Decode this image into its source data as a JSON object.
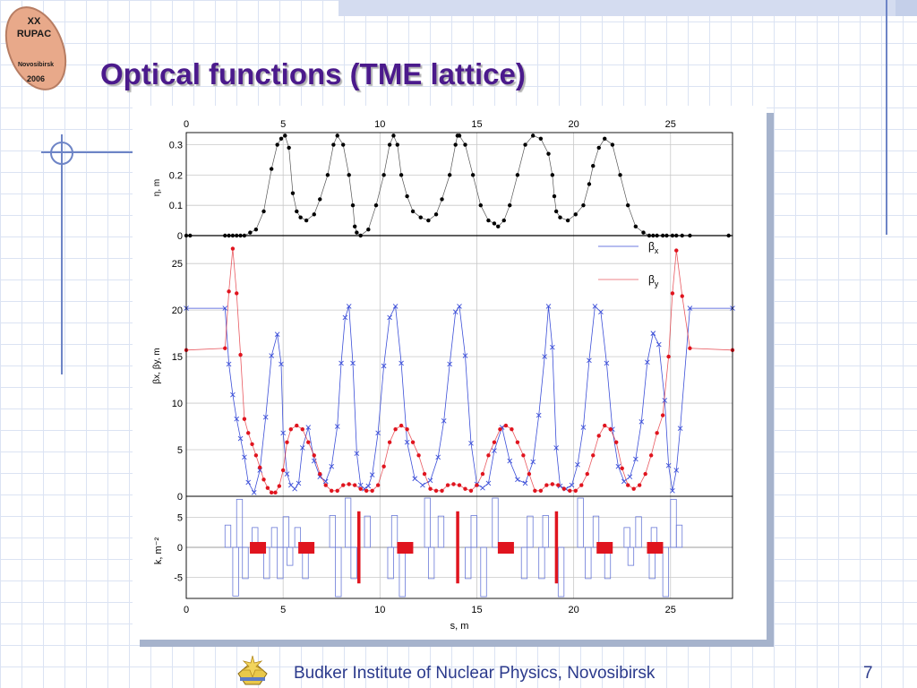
{
  "slide": {
    "title": "Optical functions (TME lattice)",
    "footer": "Budker Institute of Nuclear Physics, Novosibirsk",
    "page_number": "7",
    "logo": {
      "line1": "XX",
      "line2": "RUPAC",
      "line3": "Novosibirsk",
      "line4": "2006"
    }
  },
  "colors": {
    "title": "#4b1a8c",
    "footer": "#2b3a8c",
    "beta_x": "#3c4fd8",
    "beta_y": "#e0141e",
    "eta": "#000000",
    "magnet": "#e0141e",
    "gradient": "#6a7ad8",
    "logo": "#e8a98a"
  },
  "chart_data": [
    {
      "type": "line",
      "panel": "dispersion",
      "ylabel": "η, m",
      "ylim": [
        0,
        0.34
      ],
      "yticks": [
        "0",
        "0.1",
        "0.2",
        "0.3"
      ],
      "xlim": [
        0,
        28.2
      ],
      "xticks_top": [
        "0",
        "5",
        "10",
        "15",
        "20",
        "25"
      ],
      "x": [
        0,
        0.2,
        2,
        2.2,
        2.4,
        2.6,
        2.8,
        3,
        3.3,
        3.6,
        4.0,
        4.4,
        4.7,
        4.9,
        5.1,
        5.3,
        5.5,
        5.7,
        5.9,
        6.2,
        6.6,
        6.9,
        7.3,
        7.6,
        7.8,
        8.1,
        8.4,
        8.6,
        8.7,
        8.8,
        9.0,
        9.4,
        9.8,
        10.2,
        10.5,
        10.7,
        10.9,
        11.1,
        11.4,
        11.7,
        12.1,
        12.5,
        12.9,
        13.2,
        13.6,
        13.9,
        14.0,
        14.1,
        14.4,
        14.8,
        15.2,
        15.6,
        15.9,
        16.1,
        16.4,
        16.7,
        17.1,
        17.5,
        17.9,
        18.3,
        18.7,
        18.9,
        19.0,
        19.1,
        19.3,
        19.7,
        20.1,
        20.5,
        20.8,
        21.0,
        21.3,
        21.6,
        22.0,
        22.4,
        22.8,
        23.2,
        23.6,
        23.9,
        24.1,
        24.3,
        24.6,
        24.8,
        25.1,
        25.3,
        25.6,
        26,
        28
      ],
      "y": [
        0,
        0,
        0,
        0,
        0,
        0,
        0,
        0,
        0.01,
        0.02,
        0.08,
        0.22,
        0.3,
        0.32,
        0.33,
        0.29,
        0.14,
        0.08,
        0.06,
        0.05,
        0.07,
        0.12,
        0.2,
        0.3,
        0.33,
        0.3,
        0.2,
        0.1,
        0.03,
        0.01,
        0,
        0.02,
        0.1,
        0.2,
        0.3,
        0.33,
        0.3,
        0.2,
        0.13,
        0.08,
        0.06,
        0.05,
        0.07,
        0.12,
        0.2,
        0.3,
        0.33,
        0.33,
        0.3,
        0.2,
        0.1,
        0.05,
        0.04,
        0.03,
        0.05,
        0.1,
        0.2,
        0.3,
        0.33,
        0.32,
        0.27,
        0.2,
        0.13,
        0.08,
        0.06,
        0.05,
        0.07,
        0.1,
        0.17,
        0.23,
        0.29,
        0.32,
        0.3,
        0.2,
        0.1,
        0.03,
        0.01,
        0,
        0,
        0,
        0,
        0,
        0,
        0,
        0,
        0,
        0
      ]
    },
    {
      "type": "line",
      "panel": "beta",
      "ylabel": "βx, βy, m",
      "ylim": [
        0,
        28
      ],
      "yticks": [
        "0",
        "5",
        "10",
        "15",
        "20",
        "25"
      ],
      "xlim": [
        0,
        28.2
      ],
      "legend_position": "top-right",
      "series": [
        {
          "name": "βx",
          "x": [
            0,
            2.0,
            2.2,
            2.4,
            2.6,
            2.8,
            3.0,
            3.2,
            3.5,
            3.8,
            4.1,
            4.4,
            4.7,
            4.9,
            5.0,
            5.2,
            5.4,
            5.6,
            5.8,
            6.0,
            6.3,
            6.6,
            6.9,
            7.2,
            7.5,
            7.8,
            8.0,
            8.2,
            8.4,
            8.6,
            8.8,
            9.0,
            9.2,
            9.4,
            9.6,
            9.9,
            10.2,
            10.5,
            10.8,
            11.1,
            11.4,
            11.8,
            12.2,
            12.6,
            13.0,
            13.3,
            13.6,
            13.9,
            14.1,
            14.4,
            14.7,
            15.0,
            15.3,
            15.6,
            15.9,
            16.3,
            16.7,
            17.1,
            17.5,
            17.9,
            18.2,
            18.5,
            18.7,
            18.9,
            19.1,
            19.3,
            19.6,
            19.9,
            20.2,
            20.5,
            20.8,
            21.1,
            21.4,
            21.7,
            22.0,
            22.3,
            22.6,
            22.9,
            23.2,
            23.5,
            23.8,
            24.1,
            24.4,
            24.7,
            24.9,
            25.1,
            25.3,
            25.5,
            26.0,
            28.2
          ],
          "y": [
            20.2,
            20.2,
            14.2,
            10.9,
            8.3,
            6.2,
            4.2,
            1.5,
            0.4,
            2.8,
            8.5,
            15.1,
            17.4,
            14.2,
            6.8,
            2.4,
            1.2,
            0.8,
            1.4,
            5.2,
            7.4,
            3.8,
            2.1,
            1.6,
            3.2,
            7.5,
            14.3,
            19.2,
            20.4,
            14.3,
            4.6,
            1.2,
            0.8,
            1.1,
            2.3,
            6.8,
            14.0,
            19.2,
            20.4,
            14.3,
            5.8,
            1.9,
            1.2,
            1.7,
            4.2,
            8.1,
            14.2,
            19.8,
            20.4,
            15.1,
            5.7,
            1.3,
            0.9,
            1.4,
            4.9,
            7.4,
            3.8,
            1.8,
            1.4,
            3.7,
            8.7,
            15.0,
            20.4,
            16.0,
            5.2,
            1.1,
            0.8,
            1.2,
            3.4,
            7.4,
            14.6,
            20.4,
            19.8,
            14.3,
            7.2,
            3.2,
            1.6,
            2.1,
            4.0,
            8.0,
            14.4,
            17.5,
            16.3,
            10.3,
            3.3,
            0.6,
            2.8,
            7.3,
            20.2,
            20.2
          ]
        },
        {
          "name": "βy",
          "x": [
            0,
            2.0,
            2.2,
            2.4,
            2.6,
            2.8,
            3.0,
            3.2,
            3.4,
            3.6,
            3.8,
            4.0,
            4.2,
            4.4,
            4.6,
            4.8,
            5.0,
            5.2,
            5.4,
            5.7,
            6.0,
            6.3,
            6.6,
            6.9,
            7.2,
            7.5,
            7.8,
            8.1,
            8.4,
            8.7,
            9.0,
            9.3,
            9.6,
            9.9,
            10.2,
            10.5,
            10.8,
            11.1,
            11.4,
            11.7,
            12.0,
            12.3,
            12.6,
            12.9,
            13.2,
            13.5,
            13.8,
            14.1,
            14.4,
            14.7,
            15.0,
            15.3,
            15.6,
            15.9,
            16.2,
            16.5,
            16.8,
            17.1,
            17.4,
            17.7,
            18.0,
            18.3,
            18.6,
            18.9,
            19.2,
            19.5,
            19.8,
            20.1,
            20.4,
            20.7,
            21.0,
            21.3,
            21.6,
            21.9,
            22.2,
            22.5,
            22.8,
            23.1,
            23.4,
            23.7,
            24.0,
            24.3,
            24.6,
            24.9,
            25.1,
            25.3,
            25.6,
            26.0,
            28.2
          ],
          "y": [
            15.7,
            15.9,
            22.0,
            26.6,
            21.8,
            15.2,
            8.3,
            6.8,
            5.6,
            4.4,
            3.1,
            1.8,
            0.9,
            0.4,
            0.4,
            1.1,
            2.8,
            5.8,
            7.2,
            7.6,
            7.2,
            5.8,
            4.4,
            2.4,
            1.2,
            0.6,
            0.6,
            1.2,
            1.3,
            1.2,
            0.8,
            0.6,
            0.6,
            1.2,
            3.2,
            5.8,
            7.2,
            7.6,
            7.2,
            5.8,
            4.4,
            2.4,
            0.8,
            0.6,
            0.6,
            1.2,
            1.3,
            1.2,
            0.8,
            0.6,
            1.2,
            2.4,
            4.4,
            5.8,
            7.2,
            7.6,
            7.2,
            5.8,
            4.4,
            2.4,
            0.6,
            0.6,
            1.2,
            1.3,
            1.2,
            0.8,
            0.6,
            0.6,
            1.2,
            2.4,
            4.4,
            6.5,
            7.6,
            7.2,
            5.8,
            3.0,
            1.2,
            0.8,
            1.2,
            2.4,
            4.4,
            6.8,
            8.7,
            15.0,
            21.8,
            26.4,
            21.5,
            15.9,
            15.7
          ]
        }
      ]
    },
    {
      "type": "bar",
      "panel": "magnet_strength",
      "ylabel": "k, m⁻²",
      "ylim": [
        -8.5,
        8.5
      ],
      "yticks": [
        "5",
        "0",
        "-5"
      ],
      "xlim": [
        0,
        28.2
      ],
      "xticks": [
        "0",
        "5",
        "10",
        "15",
        "20",
        "25"
      ],
      "xlabel": "s, m",
      "quad_x": [
        2.0,
        2.4,
        2.6,
        2.9,
        3.4,
        4.0,
        4.4,
        4.7,
        5.0,
        5.2,
        5.6,
        6.0,
        7.4,
        7.7,
        8.2,
        8.5,
        9.2,
        10.4,
        10.6,
        11.0,
        12.3,
        12.5,
        13.0,
        14.4,
        14.7,
        15.2,
        15.8,
        17.3,
        17.6,
        18.2,
        18.4,
        19.2,
        20.2,
        20.6,
        21.0,
        21.6,
        22.6,
        22.8,
        23.2,
        23.9,
        24.0,
        24.6,
        25.0,
        25.3
      ],
      "quad_k": [
        3.7,
        -8.1,
        8.0,
        -5.2,
        3.3,
        -5.2,
        3.3,
        -5.2,
        5.1,
        -3.0,
        3.3,
        -5.2,
        5.3,
        -8.2,
        8.2,
        -5.2,
        5.2,
        -5.2,
        5.3,
        -8.2,
        8.2,
        -5.2,
        5.2,
        -5.2,
        5.3,
        -8.2,
        8.2,
        -5.2,
        5.2,
        -5.2,
        5.3,
        -8.2,
        8.2,
        -5.2,
        5.2,
        -5.2,
        3.3,
        -3.0,
        5.1,
        -5.2,
        3.3,
        -8.2,
        8.0,
        3.7
      ],
      "dipoles_x": [
        3.7,
        6.2,
        11.3,
        16.5,
        21.6,
        24.2
      ],
      "septa_x": [
        8.9,
        14.0,
        19.1
      ]
    }
  ]
}
